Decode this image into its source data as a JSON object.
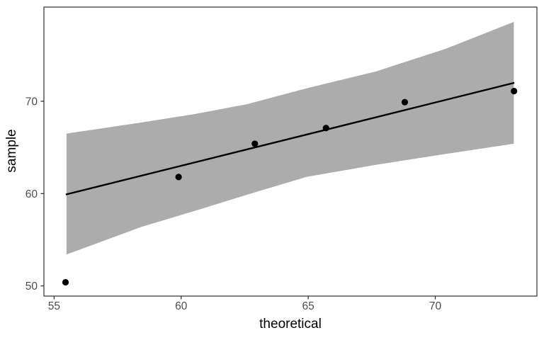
{
  "chart_data": {
    "type": "scatter",
    "subtype": "qq-plot-with-confidence-band",
    "title": "",
    "xlabel": "theoretical",
    "ylabel": "sample",
    "xlim": [
      54.6,
      74.0
    ],
    "ylim": [
      48.9,
      80.2
    ],
    "x_ticks": [
      55,
      60,
      65,
      70
    ],
    "y_ticks": [
      50,
      60,
      70
    ],
    "grid": false,
    "legend": false,
    "points": [
      {
        "x": 55.45,
        "y": 50.4
      },
      {
        "x": 59.9,
        "y": 61.8
      },
      {
        "x": 62.9,
        "y": 65.4
      },
      {
        "x": 65.7,
        "y": 67.1
      },
      {
        "x": 68.8,
        "y": 69.9
      },
      {
        "x": 73.1,
        "y": 71.1
      }
    ],
    "reference_line": {
      "x1": 55.46,
      "y1": 59.9,
      "x2": 73.11,
      "y2": 72.0
    },
    "confidence_band": [
      {
        "x": 55.49,
        "lower": 53.4,
        "upper": 66.5
      },
      {
        "x": 58.44,
        "lower": 56.4,
        "upper": 67.7
      },
      {
        "x": 60.5,
        "lower": 58.1,
        "upper": 68.6
      },
      {
        "x": 62.62,
        "lower": 59.9,
        "upper": 69.7
      },
      {
        "x": 64.93,
        "lower": 61.8,
        "upper": 71.4
      },
      {
        "x": 67.63,
        "lower": 63.1,
        "upper": 73.2
      },
      {
        "x": 70.42,
        "lower": 64.3,
        "upper": 75.7
      },
      {
        "x": 73.09,
        "lower": 65.4,
        "upper": 78.6
      }
    ],
    "colors": {
      "background": "#FFFFFF",
      "band": "#ACACAC",
      "line": "#000000",
      "point": "#000000",
      "axis_text": "#4D4D4D",
      "axis_title": "#000000",
      "panel_border": "#404040",
      "tick_mark": "#333333"
    }
  }
}
